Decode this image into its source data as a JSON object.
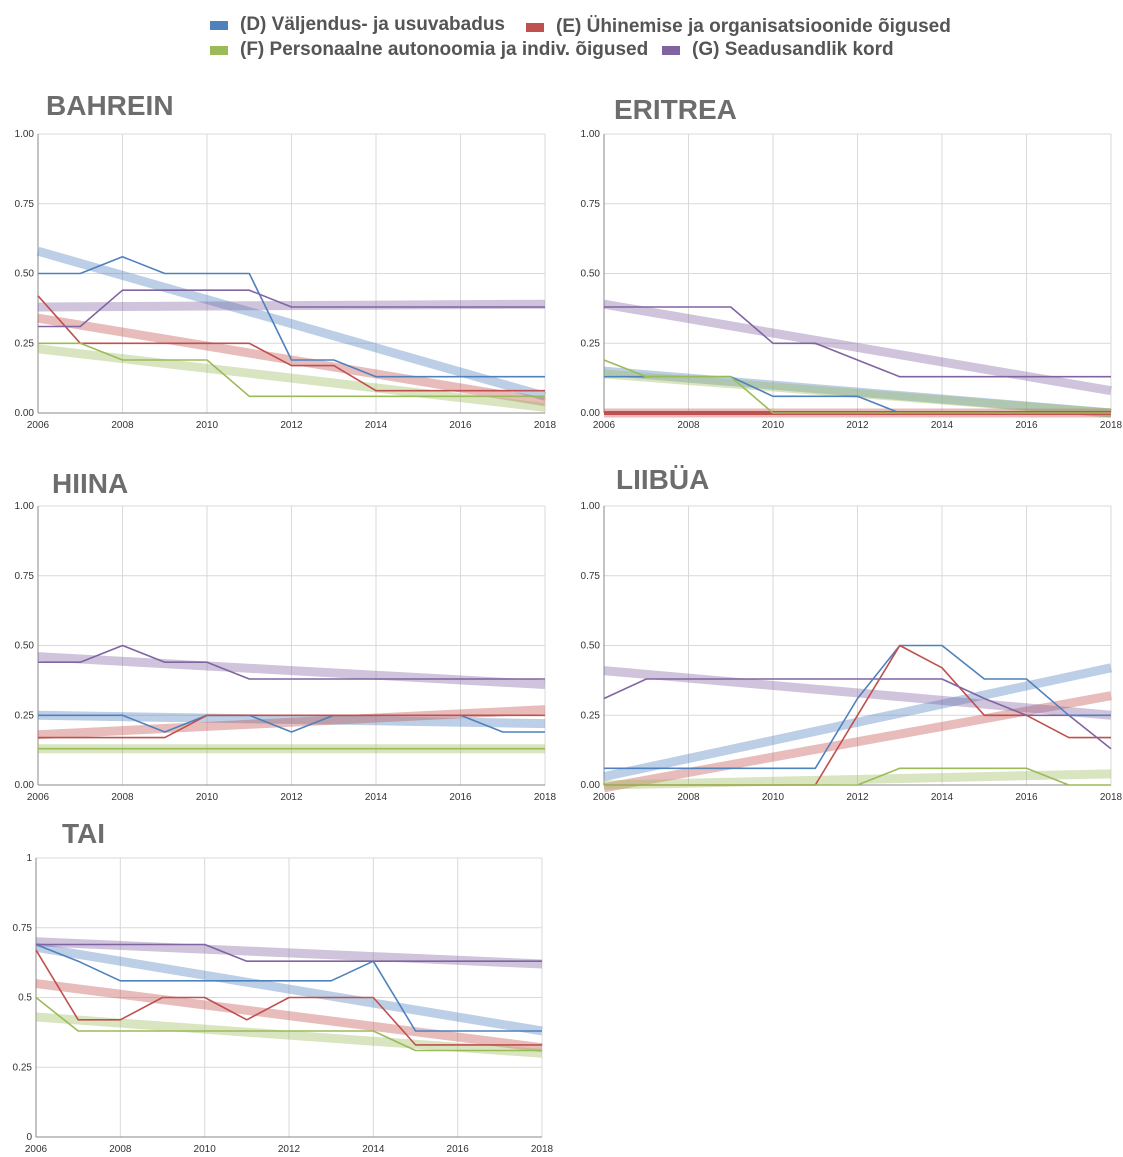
{
  "legend": [
    {
      "label": "(D) Väljendus- ja usuvabadus",
      "color": "#4f81bd"
    },
    {
      "label": "(E) Ühinemise ja organisatsioonide õigused",
      "color": "#c0504d"
    },
    {
      "label": "(F) Personaalne autonoomia ja indiv. õigused",
      "color": "#9bbb59"
    },
    {
      "label": "(G) Seadusandlik kord",
      "color": "#8064a2"
    }
  ],
  "colors": {
    "D": "#4f81bd",
    "E": "#c0504d",
    "F": "#9bbb59",
    "G": "#8064a2",
    "grid": "#d9d9d9",
    "axis": "#888888"
  },
  "chart_data": [
    {
      "type": "line",
      "title": "BAHREIN",
      "x": [
        2006,
        2007,
        2008,
        2009,
        2010,
        2011,
        2012,
        2013,
        2014,
        2015,
        2016,
        2017,
        2018
      ],
      "x_ticks": [
        "2006",
        "2008",
        "2010",
        "2012",
        "2014",
        "2016",
        "2018"
      ],
      "y_ticks": [
        "0.00",
        "0.25",
        "0.50",
        "0.75",
        "1.00"
      ],
      "ylim": [
        0,
        1
      ],
      "grid": true,
      "series": [
        {
          "name": "(D) Väljendus- ja usuvabadus",
          "key": "D",
          "values": [
            0.5,
            0.5,
            0.56,
            0.5,
            0.5,
            0.5,
            0.19,
            0.19,
            0.13,
            0.13,
            0.13,
            0.13,
            0.13
          ],
          "trend": [
            0.58,
            0.06
          ]
        },
        {
          "name": "(E) Ühinemise ja organisatsioonide õigused",
          "key": "E",
          "values": [
            0.42,
            0.25,
            0.25,
            0.25,
            0.25,
            0.25,
            0.17,
            0.17,
            0.08,
            0.08,
            0.08,
            0.08,
            0.08
          ],
          "trend": [
            0.34,
            0.04
          ]
        },
        {
          "name": "(F) Personaalne autonoomia ja indiv. õigused",
          "key": "F",
          "values": [
            0.25,
            0.25,
            0.19,
            0.19,
            0.19,
            0.06,
            0.06,
            0.06,
            0.06,
            0.06,
            0.06,
            0.06,
            0.06
          ],
          "trend": [
            0.23,
            0.02
          ]
        },
        {
          "name": "(G) Seadusandlik kord",
          "key": "G",
          "values": [
            0.31,
            0.31,
            0.44,
            0.44,
            0.44,
            0.44,
            0.38,
            0.38,
            0.38,
            0.38,
            0.38,
            0.38,
            0.38
          ],
          "trend": [
            0.38,
            0.39
          ]
        }
      ]
    },
    {
      "type": "line",
      "title": "ERITREA",
      "x": [
        2006,
        2007,
        2008,
        2009,
        2010,
        2011,
        2012,
        2013,
        2014,
        2015,
        2016,
        2017,
        2018
      ],
      "x_ticks": [
        "2006",
        "2008",
        "2010",
        "2012",
        "2014",
        "2016",
        "2018"
      ],
      "y_ticks": [
        "0.00",
        "0.25",
        "0.50",
        "0.75",
        "1.00"
      ],
      "ylim": [
        0,
        1
      ],
      "grid": true,
      "series": [
        {
          "name": "(D) Väljendus- ja usuvabadus",
          "key": "D",
          "values": [
            0.13,
            0.13,
            0.13,
            0.13,
            0.06,
            0.06,
            0.06,
            0.0,
            0.0,
            0.0,
            0.0,
            0.0,
            0.0
          ],
          "trend": [
            0.15,
            0.0
          ]
        },
        {
          "name": "(E) Ühinemise ja organisatsioonide õigused",
          "key": "E",
          "values": [
            0.0,
            0.0,
            0.0,
            0.0,
            0.0,
            0.0,
            0.0,
            0.0,
            0.0,
            0.0,
            0.0,
            0.0,
            0.0
          ],
          "trend": [
            0.0,
            0.0
          ]
        },
        {
          "name": "(F) Personaalne autonoomia ja indiv. õigused",
          "key": "F",
          "values": [
            0.19,
            0.13,
            0.13,
            0.13,
            0.0,
            0.0,
            0.0,
            0.0,
            0.0,
            0.0,
            0.0,
            0.0,
            0.0
          ],
          "trend": [
            0.14,
            0.0
          ]
        },
        {
          "name": "(G) Seadusandlik kord",
          "key": "G",
          "values": [
            0.38,
            0.38,
            0.38,
            0.38,
            0.25,
            0.25,
            0.19,
            0.13,
            0.13,
            0.13,
            0.13,
            0.13,
            0.13
          ],
          "trend": [
            0.39,
            0.08
          ]
        }
      ]
    },
    {
      "type": "line",
      "title": "HIINA",
      "x": [
        2006,
        2007,
        2008,
        2009,
        2010,
        2011,
        2012,
        2013,
        2014,
        2015,
        2016,
        2017,
        2018
      ],
      "x_ticks": [
        "2006",
        "2008",
        "2010",
        "2012",
        "2014",
        "2016",
        "2018"
      ],
      "y_ticks": [
        "0.00",
        "0.25",
        "0.50",
        "0.75",
        "1.00"
      ],
      "ylim": [
        0,
        1
      ],
      "grid": true,
      "series": [
        {
          "name": "(D) Väljendus- ja usuvabadus",
          "key": "D",
          "values": [
            0.25,
            0.25,
            0.25,
            0.19,
            0.25,
            0.25,
            0.19,
            0.25,
            0.25,
            0.25,
            0.25,
            0.19,
            0.19
          ],
          "trend": [
            0.25,
            0.22
          ]
        },
        {
          "name": "(E) Ühinemise ja organisatsioonide õigused",
          "key": "E",
          "values": [
            0.17,
            0.17,
            0.17,
            0.17,
            0.25,
            0.25,
            0.25,
            0.25,
            0.25,
            0.25,
            0.25,
            0.25,
            0.25
          ],
          "trend": [
            0.18,
            0.27
          ]
        },
        {
          "name": "(F) Personaalne autonoomia ja indiv. õigused",
          "key": "F",
          "values": [
            0.13,
            0.13,
            0.13,
            0.13,
            0.13,
            0.13,
            0.13,
            0.13,
            0.13,
            0.13,
            0.13,
            0.13,
            0.13
          ],
          "trend": [
            0.13,
            0.13
          ]
        },
        {
          "name": "(G) Seadusandlik kord",
          "key": "G",
          "values": [
            0.44,
            0.44,
            0.5,
            0.44,
            0.44,
            0.38,
            0.38,
            0.38,
            0.38,
            0.38,
            0.38,
            0.38,
            0.38
          ],
          "trend": [
            0.46,
            0.36
          ]
        }
      ]
    },
    {
      "type": "line",
      "title": "LIIBÜA",
      "x": [
        2006,
        2007,
        2008,
        2009,
        2010,
        2011,
        2012,
        2013,
        2014,
        2015,
        2016,
        2017,
        2018
      ],
      "x_ticks": [
        "2006",
        "2008",
        "2010",
        "2012",
        "2014",
        "2016",
        "2018"
      ],
      "y_ticks": [
        "0.00",
        "0.25",
        "0.50",
        "0.75",
        "1.00"
      ],
      "ylim": [
        0,
        1
      ],
      "grid": true,
      "series": [
        {
          "name": "(D) Väljendus- ja usuvabadus",
          "key": "D",
          "values": [
            0.06,
            0.06,
            0.06,
            0.06,
            0.06,
            0.06,
            0.31,
            0.5,
            0.5,
            0.38,
            0.38,
            0.25,
            0.25
          ],
          "trend": [
            0.03,
            0.42
          ]
        },
        {
          "name": "(E) Ühinemise ja organisatsioonide õigused",
          "key": "E",
          "values": [
            0.0,
            0.0,
            0.0,
            0.0,
            0.0,
            0.0,
            0.25,
            0.5,
            0.42,
            0.25,
            0.25,
            0.17,
            0.17
          ],
          "trend": [
            -0.01,
            0.32
          ]
        },
        {
          "name": "(F) Personaalne autonoomia ja indiv. õigused",
          "key": "F",
          "values": [
            0.0,
            0.0,
            0.0,
            0.0,
            0.0,
            0.0,
            0.0,
            0.06,
            0.06,
            0.06,
            0.06,
            0.0,
            0.0
          ],
          "trend": [
            0.0,
            0.04
          ]
        },
        {
          "name": "(G) Seadusandlik kord",
          "key": "G",
          "values": [
            0.31,
            0.38,
            0.38,
            0.38,
            0.38,
            0.38,
            0.38,
            0.38,
            0.38,
            0.31,
            0.25,
            0.25,
            0.13
          ],
          "trend": [
            0.41,
            0.25
          ]
        }
      ]
    },
    {
      "type": "line",
      "title": "TAI",
      "x": [
        2006,
        2007,
        2008,
        2009,
        2010,
        2011,
        2012,
        2013,
        2014,
        2015,
        2016,
        2017,
        2018
      ],
      "x_ticks": [
        "2006",
        "2008",
        "2010",
        "2012",
        "2014",
        "2016",
        "2018"
      ],
      "y_ticks": [
        "0",
        "0.25",
        "0.5",
        "0.75",
        "1"
      ],
      "ylim": [
        0,
        1
      ],
      "grid": true,
      "series": [
        {
          "name": "(D) Väljendus- ja usuvabadus",
          "key": "D",
          "values": [
            0.69,
            0.63,
            0.56,
            0.56,
            0.56,
            0.56,
            0.56,
            0.56,
            0.63,
            0.38,
            0.38,
            0.38,
            0.38
          ],
          "trend": [
            0.68,
            0.38
          ]
        },
        {
          "name": "(E) Ühinemise ja organisatsioonide õigused",
          "key": "E",
          "values": [
            0.67,
            0.42,
            0.42,
            0.5,
            0.5,
            0.42,
            0.5,
            0.5,
            0.5,
            0.33,
            0.33,
            0.33,
            0.33
          ],
          "trend": [
            0.55,
            0.32
          ]
        },
        {
          "name": "(F) Personaalne autonoomia ja indiv. õigused",
          "key": "F",
          "values": [
            0.5,
            0.38,
            0.38,
            0.38,
            0.38,
            0.38,
            0.38,
            0.38,
            0.38,
            0.31,
            0.31,
            0.31,
            0.31
          ],
          "trend": [
            0.43,
            0.3
          ]
        },
        {
          "name": "(G) Seadusandlik kord",
          "key": "G",
          "values": [
            0.69,
            0.69,
            0.69,
            0.69,
            0.69,
            0.63,
            0.63,
            0.63,
            0.63,
            0.63,
            0.63,
            0.63,
            0.63
          ],
          "trend": [
            0.7,
            0.62
          ]
        }
      ]
    }
  ]
}
